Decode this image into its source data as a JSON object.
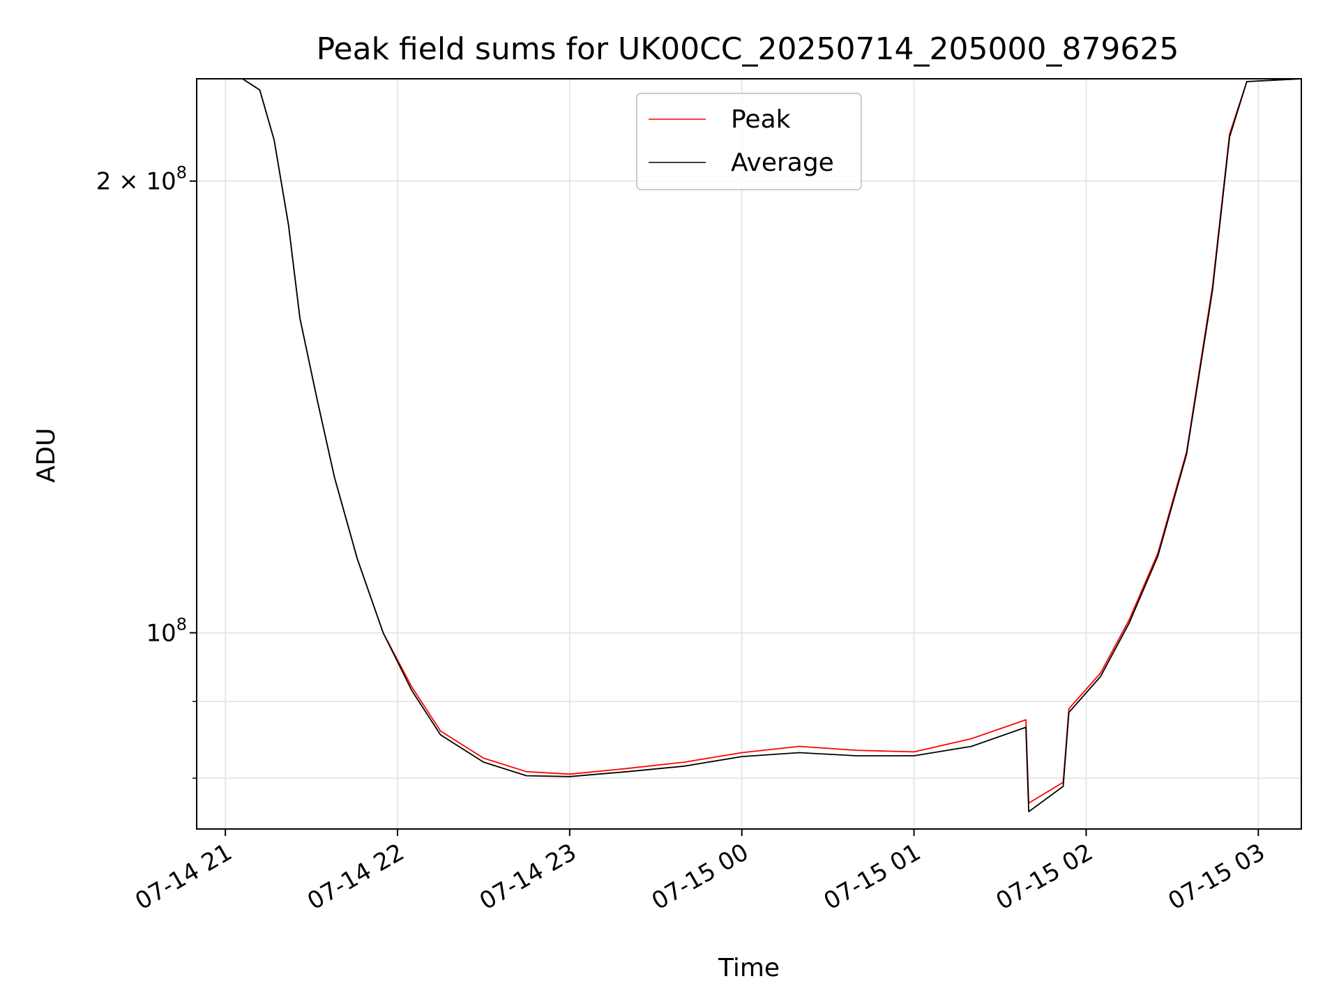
{
  "chart_data": {
    "type": "line",
    "title": "Peak field sums for UK00CC_20250714_205000_879625",
    "xlabel": "Time",
    "ylabel": "ADU",
    "x_scale": "time",
    "y_scale": "log",
    "xlim": [
      "2025-07-14T20:50",
      "2025-07-15T03:15"
    ],
    "ylim": [
      74000000,
      234000000
    ],
    "x_ticks": [
      {
        "t": "2025-07-14T21:00",
        "label": "07-14 21"
      },
      {
        "t": "2025-07-14T22:00",
        "label": "07-14 22"
      },
      {
        "t": "2025-07-14T23:00",
        "label": "07-14 23"
      },
      {
        "t": "2025-07-15T00:00",
        "label": "07-15 00"
      },
      {
        "t": "2025-07-15T01:00",
        "label": "07-15 01"
      },
      {
        "t": "2025-07-15T02:00",
        "label": "07-15 02"
      },
      {
        "t": "2025-07-15T03:00",
        "label": "07-15 03"
      }
    ],
    "y_ticks": [
      {
        "value": 200000000,
        "base": "2 × 10",
        "exp": "8"
      },
      {
        "value": 100000000,
        "base": "10",
        "exp": "8"
      }
    ],
    "y_minor_ticks": [
      70000000,
      80000000,
      90000000
    ],
    "grid": true,
    "legend_position": "upper-center",
    "series": [
      {
        "name": "Peak",
        "color": "#ff0000",
        "points": [
          [
            "2025-07-14T20:50",
            234000000
          ],
          [
            "2025-07-14T21:06",
            234000000
          ],
          [
            "2025-07-14T21:12",
            230000000
          ],
          [
            "2025-07-14T21:17",
            213000000
          ],
          [
            "2025-07-14T21:22",
            187000000
          ],
          [
            "2025-07-14T21:26",
            162000000
          ],
          [
            "2025-07-14T21:32",
            143000000
          ],
          [
            "2025-07-14T21:38",
            127000000
          ],
          [
            "2025-07-14T21:46",
            112000000
          ],
          [
            "2025-07-14T21:55",
            100000000
          ],
          [
            "2025-07-14T22:05",
            92000000
          ],
          [
            "2025-07-14T22:15",
            86000000
          ],
          [
            "2025-07-14T22:30",
            82500000
          ],
          [
            "2025-07-14T22:45",
            80800000
          ],
          [
            "2025-07-14T23:00",
            80500000
          ],
          [
            "2025-07-14T23:20",
            81200000
          ],
          [
            "2025-07-14T23:40",
            82000000
          ],
          [
            "2025-07-15T00:00",
            83200000
          ],
          [
            "2025-07-15T00:20",
            84000000
          ],
          [
            "2025-07-15T00:40",
            83500000
          ],
          [
            "2025-07-15T01:00",
            83300000
          ],
          [
            "2025-07-15T01:20",
            85000000
          ],
          [
            "2025-07-15T01:39",
            87500000
          ],
          [
            "2025-07-15T01:40",
            77000000
          ],
          [
            "2025-07-15T01:52",
            79500000
          ],
          [
            "2025-07-15T01:54",
            89000000
          ],
          [
            "2025-07-15T02:05",
            94000000
          ],
          [
            "2025-07-15T02:15",
            102000000
          ],
          [
            "2025-07-15T02:25",
            113000000
          ],
          [
            "2025-07-15T02:35",
            132000000
          ],
          [
            "2025-07-15T02:44",
            170000000
          ],
          [
            "2025-07-15T02:50",
            215000000
          ],
          [
            "2025-07-15T02:56",
            233000000
          ],
          [
            "2025-07-15T03:15",
            234000000
          ]
        ]
      },
      {
        "name": "Average",
        "color": "#000000",
        "points": [
          [
            "2025-07-14T20:50",
            234000000
          ],
          [
            "2025-07-14T21:06",
            234000000
          ],
          [
            "2025-07-14T21:12",
            230000000
          ],
          [
            "2025-07-14T21:17",
            213000000
          ],
          [
            "2025-07-14T21:22",
            187000000
          ],
          [
            "2025-07-14T21:26",
            162000000
          ],
          [
            "2025-07-14T21:32",
            143000000
          ],
          [
            "2025-07-14T21:38",
            127000000
          ],
          [
            "2025-07-14T21:46",
            112000000
          ],
          [
            "2025-07-14T21:55",
            100000000
          ],
          [
            "2025-07-14T22:05",
            91500000
          ],
          [
            "2025-07-14T22:15",
            85500000
          ],
          [
            "2025-07-14T22:30",
            82000000
          ],
          [
            "2025-07-14T22:45",
            80300000
          ],
          [
            "2025-07-14T23:00",
            80200000
          ],
          [
            "2025-07-14T23:20",
            80800000
          ],
          [
            "2025-07-14T23:40",
            81500000
          ],
          [
            "2025-07-15T00:00",
            82700000
          ],
          [
            "2025-07-15T00:20",
            83200000
          ],
          [
            "2025-07-15T00:40",
            82800000
          ],
          [
            "2025-07-15T01:00",
            82800000
          ],
          [
            "2025-07-15T01:20",
            84000000
          ],
          [
            "2025-07-15T01:39",
            86500000
          ],
          [
            "2025-07-15T01:40",
            76000000
          ],
          [
            "2025-07-15T01:52",
            79000000
          ],
          [
            "2025-07-15T01:54",
            88500000
          ],
          [
            "2025-07-15T02:05",
            93500000
          ],
          [
            "2025-07-15T02:15",
            101500000
          ],
          [
            "2025-07-15T02:25",
            112500000
          ],
          [
            "2025-07-15T02:35",
            131500000
          ],
          [
            "2025-07-15T02:44",
            169000000
          ],
          [
            "2025-07-15T02:50",
            214000000
          ],
          [
            "2025-07-15T02:56",
            233000000
          ],
          [
            "2025-07-15T03:15",
            234000000
          ]
        ]
      }
    ]
  }
}
